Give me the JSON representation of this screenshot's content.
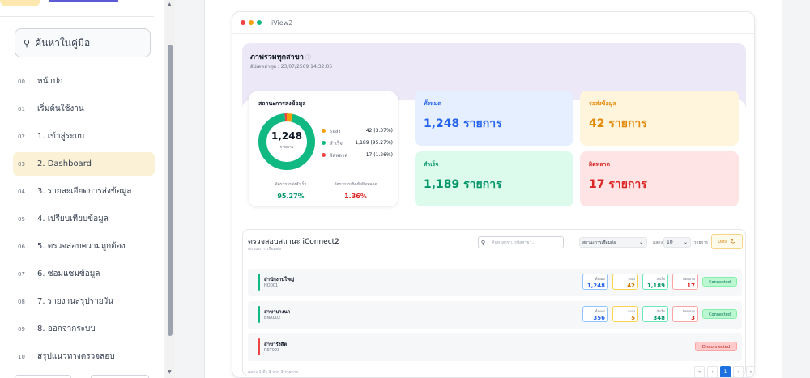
{
  "sidebar": {
    "search_placeholder": "ค้นหาในคู่มือ",
    "items": [
      {
        "num": "00",
        "label": "หน้าปก"
      },
      {
        "num": "01",
        "label": "เริ่มต้นใช้งาน"
      },
      {
        "num": "02",
        "label": "1. เข้าสู่ระบบ"
      },
      {
        "num": "03",
        "label": "2. Dashboard"
      },
      {
        "num": "04",
        "label": "3. รายละเอียดการส่งข้อมูล"
      },
      {
        "num": "05",
        "label": "4. เปรียบเทียบข้อมูล"
      },
      {
        "num": "06",
        "label": "5. ตรวจสอบความถูกต้อง"
      },
      {
        "num": "07",
        "label": "6. ซ่อมแซมข้อมูล"
      },
      {
        "num": "08",
        "label": "7. รายงานสรุปรายวัน"
      },
      {
        "num": "09",
        "label": "8. ออกจากระบบ"
      },
      {
        "num": "10",
        "label": "สรุปแนวทางตรวจสอบ"
      }
    ]
  },
  "window": {
    "title": "iView2"
  },
  "overview": {
    "title": "ภาพรวมทุกสาขา",
    "info_icon": "ⓘ",
    "updated": "อัปเดตล่าสุด : 23/07/2569 14:32:05"
  },
  "donut": {
    "title": "สถานะการส่งข้อมูล",
    "total": "1,248",
    "unit": "รายการ",
    "pending_frac": 0.0337,
    "success_frac": 0.9527,
    "error_frac": 0.0136,
    "legend": [
      {
        "label": "รอส่ง",
        "value": "42 (3.37%)",
        "color": "#f59e0b"
      },
      {
        "label": "สำเร็จ",
        "value": "1,189 (95.27%)",
        "color": "#10b981"
      },
      {
        "label": "ผิดพลาด",
        "value": "17 (1.36%)",
        "color": "#ef4444"
      }
    ],
    "success_rate_label": "อัตราการส่งสำเร็จ",
    "success_rate": "95.27%",
    "error_rate_label": "อัตราการเกิดข้อผิดพลาด",
    "error_rate": "1.36%"
  },
  "stats": [
    {
      "label": "ทั้งหมด",
      "value": "1,248 รายการ",
      "bg": "#e6efff",
      "color": "#2563eb"
    },
    {
      "label": "รอส่งข้อมูล",
      "value": "42 รายการ",
      "bg": "#fff4dc",
      "color": "#e38a0a"
    },
    {
      "label": "สำเร็จ",
      "value": "1,189 รายการ",
      "bg": "#ddfbec",
      "color": "#059669"
    },
    {
      "label": "ผิดพลาด",
      "value": "17 รายการ",
      "bg": "#fee4e4",
      "color": "#dc2626"
    }
  ],
  "panel": {
    "title": "ตรวจสอบสถานะ iConnect2",
    "subtitle": "สถานะการเชื่อมต่อ",
    "search_placeholder": "ค้นหาสาขา, รหัสสาขา...",
    "status_select": "สถานะการเชื่อมต่อ",
    "show_label": "แสดง",
    "page_size": "10",
    "items_label": "รายการ",
    "refresh_label": "Data",
    "footer": "แสดง 1 ถึง 3 จาก 3 รายการ",
    "mini_labels": [
      "ทั้งหมด",
      "รอส่ง",
      "สำเร็จ",
      "ผิดพลาด"
    ],
    "rows": [
      {
        "name": "สำนักงานใหญ่",
        "code": "HQ001",
        "bar": "#10b981",
        "total": "1,248",
        "pending": "42",
        "success": "1,189",
        "error": "17",
        "status": "Connected"
      },
      {
        "name": "สาขาบางนา",
        "code": "BNA002",
        "bar": "#10b981",
        "total": "356",
        "pending": "5",
        "success": "348",
        "error": "3",
        "status": "Connected"
      },
      {
        "name": "สาขารังสิต",
        "code": "RST003",
        "bar": "#ef4444",
        "status": "Disconnected"
      }
    ],
    "pager": [
      "«",
      "‹",
      "1",
      "›",
      "»"
    ]
  }
}
